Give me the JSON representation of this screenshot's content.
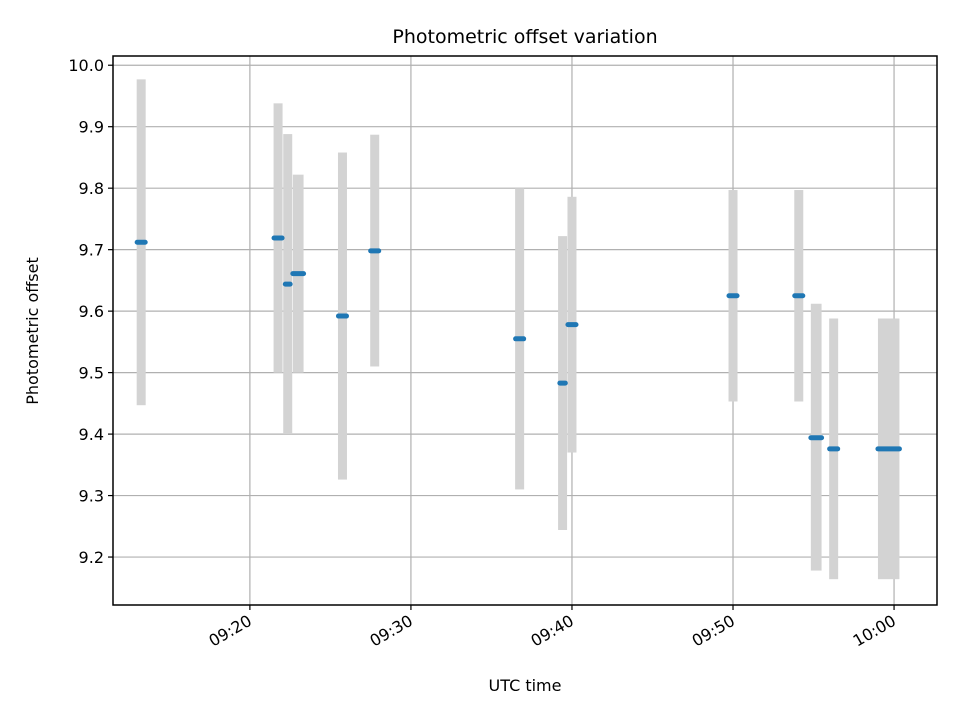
{
  "chart_data": {
    "type": "scatter",
    "title": "Photometric offset variation",
    "xlabel": "UTC time",
    "ylabel": "Photometric offset",
    "x_axis": {
      "kind": "time",
      "range": [
        "09:11:30",
        "10:02:40"
      ],
      "ticks": [
        "09:20",
        "09:30",
        "09:40",
        "09:50",
        "10:00"
      ]
    },
    "y_axis": {
      "range": [
        9.122,
        10.015
      ],
      "ticks": [
        "9.2",
        "9.3",
        "9.4",
        "9.5",
        "9.6",
        "9.7",
        "9.8",
        "9.9",
        "10.0"
      ]
    },
    "grid": true,
    "colors": {
      "point": "#1f77b4",
      "error_band": "#d3d3d3"
    },
    "points": [
      {
        "t0": "09:13:00",
        "t1": "09:13:30",
        "y": 9.712,
        "ylo": 9.447,
        "yhi": 9.977
      },
      {
        "t0": "09:21:30",
        "t1": "09:22:00",
        "y": 9.719,
        "ylo": 9.5,
        "yhi": 9.938
      },
      {
        "t0": "09:22:12",
        "t1": "09:22:30",
        "y": 9.644,
        "ylo": 9.4,
        "yhi": 9.888
      },
      {
        "t0": "09:22:40",
        "t1": "09:23:20",
        "y": 9.661,
        "ylo": 9.5,
        "yhi": 9.822
      },
      {
        "t0": "09:25:30",
        "t1": "09:26:00",
        "y": 9.592,
        "ylo": 9.326,
        "yhi": 9.858
      },
      {
        "t0": "09:27:30",
        "t1": "09:28:00",
        "y": 9.698,
        "ylo": 9.51,
        "yhi": 9.887
      },
      {
        "t0": "09:36:30",
        "t1": "09:37:00",
        "y": 9.555,
        "ylo": 9.31,
        "yhi": 9.8
      },
      {
        "t0": "09:39:15",
        "t1": "09:39:35",
        "y": 9.483,
        "ylo": 9.244,
        "yhi": 9.722
      },
      {
        "t0": "09:39:45",
        "t1": "09:40:15",
        "y": 9.578,
        "ylo": 9.37,
        "yhi": 9.786
      },
      {
        "t0": "09:49:45",
        "t1": "09:50:15",
        "y": 9.625,
        "ylo": 9.453,
        "yhi": 9.797
      },
      {
        "t0": "09:53:50",
        "t1": "09:54:20",
        "y": 9.625,
        "ylo": 9.453,
        "yhi": 9.797
      },
      {
        "t0": "09:54:50",
        "t1": "09:55:30",
        "y": 9.394,
        "ylo": 9.178,
        "yhi": 9.612
      },
      {
        "t0": "09:56:00",
        "t1": "09:56:30",
        "y": 9.376,
        "ylo": 9.164,
        "yhi": 9.588
      },
      {
        "t0": "09:59:00",
        "t1": "10:00:20",
        "y": 9.376,
        "ylo": 9.164,
        "yhi": 9.588
      }
    ]
  }
}
